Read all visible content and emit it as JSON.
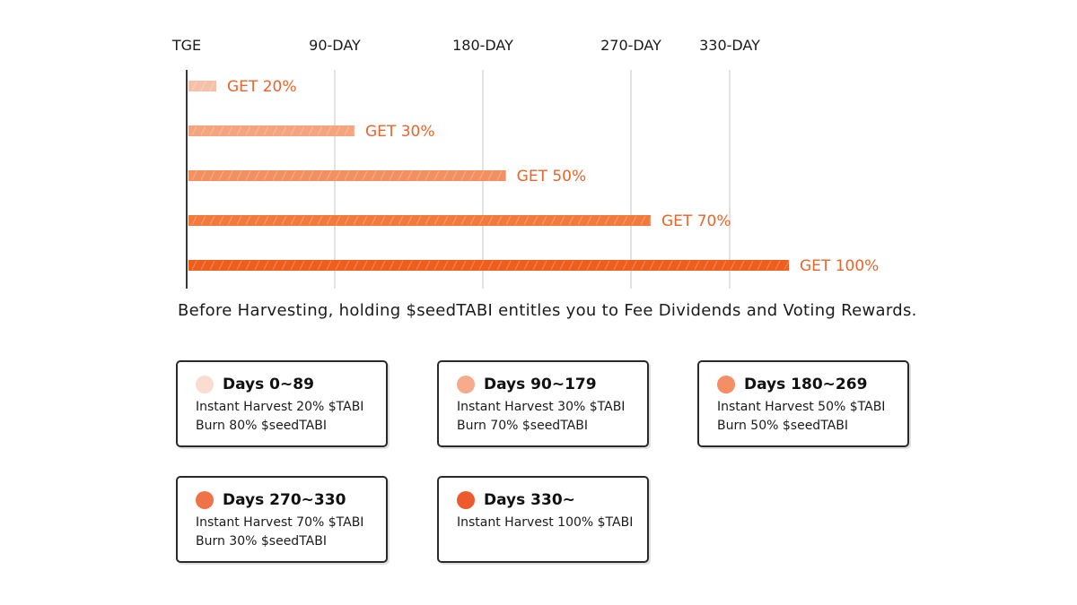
{
  "chart_data": {
    "type": "bar",
    "orientation": "horizontal",
    "x_ticks": [
      "TGE",
      "90-DAY",
      "180-DAY",
      "270-DAY",
      "330-DAY"
    ],
    "x_tick_values": [
      0,
      90,
      180,
      270,
      330
    ],
    "xlim": [
      0,
      330
    ],
    "categories": [
      "TGE",
      "90-DAY",
      "180-DAY",
      "270-DAY",
      "330-DAY"
    ],
    "bar_labels": [
      "GET 20%",
      "GET 30%",
      "GET 50%",
      "GET 70%",
      "GET 100%"
    ],
    "values": [
      20,
      30,
      50,
      70,
      100
    ],
    "end_days": [
      18,
      102,
      194,
      282,
      366
    ],
    "grid": true,
    "colors": [
      "#f5c1aa",
      "#f4a47f",
      "#f29062",
      "#f27a3d",
      "#ef5e1d"
    ],
    "label_color": "#e8652c"
  },
  "note": "Before Harvesting, holding $seedTABI entitles you to Fee Dividends and Voting Rewards.",
  "cards": [
    {
      "title": "Days 0~89",
      "dot_color": "#fbdcd1",
      "lines": [
        "Instant Harvest 20% $TABI",
        "Burn 80% $seedTABI"
      ]
    },
    {
      "title": "Days 90~179",
      "dot_color": "#f7aa8c",
      "lines": [
        "Instant Harvest 30% $TABI",
        "Burn 70% $seedTABI"
      ]
    },
    {
      "title": "Days 180~269",
      "dot_color": "#f48e65",
      "lines": [
        "Instant Harvest 50% $TABI",
        "Burn 50% $seedTABI"
      ]
    },
    {
      "title": "Days 270~330",
      "dot_color": "#f07347",
      "lines": [
        "Instant Harvest 70% $TABI",
        "Burn 30% $seedTABI"
      ]
    },
    {
      "title": "Days 330~",
      "dot_color": "#ed5a2e",
      "lines": [
        "Instant Harvest 100% $TABI"
      ]
    }
  ]
}
